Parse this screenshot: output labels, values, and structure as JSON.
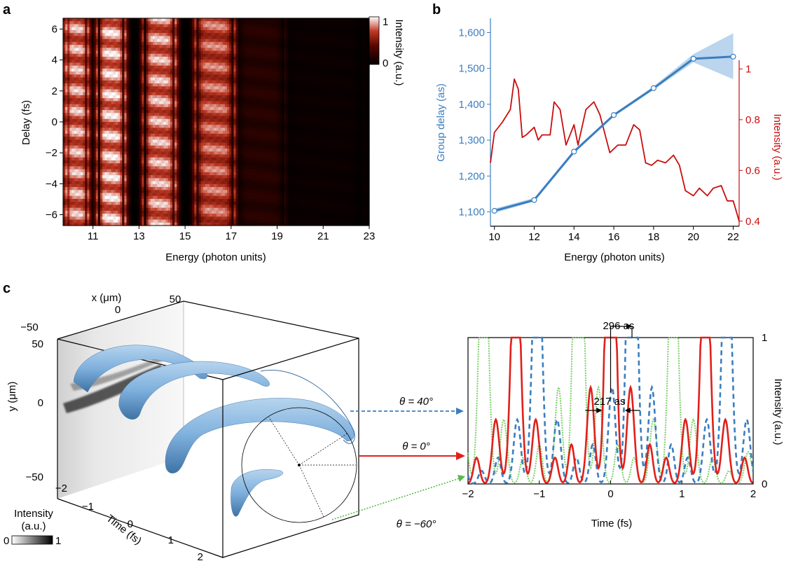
{
  "panels": {
    "a": "a",
    "b": "b",
    "c": "c"
  },
  "colors": {
    "blue": "#3a7ebf",
    "blue_light": "#a9cbe8",
    "red": "#c90d0d",
    "red_dashed_c": "#e0201b",
    "green": "#7ccf6a",
    "dark": "#000000"
  },
  "panel_a": {
    "xlabel": "Energy (photon units)",
    "ylabel": "Delay (fs)",
    "colorbar_label": "Intensity (a.u.)",
    "colorbar_ticks": [
      "1",
      "0"
    ]
  },
  "panel_b": {
    "xlabel": "Energy (photon units)",
    "ylabel_left": "Group delay (as)",
    "ylabel_right": "Intensity (a.u.)"
  },
  "panel_c": {
    "x_axis_label": "x (μm)",
    "y_axis_label": "y (μm)",
    "time_axis_label": "Time (fs)",
    "x_ticks": [
      "−50",
      "0",
      "50"
    ],
    "y_ticks": [
      "50",
      "0",
      "−50"
    ],
    "t_ticks": [
      "−2",
      "−1",
      "0",
      "1",
      "2"
    ],
    "intensity_legend_label_1": "Intensity",
    "intensity_legend_label_2": "(a.u.)",
    "intensity_legend_ticks": [
      "0",
      "1"
    ],
    "theta_labels": [
      "θ = 40°",
      "θ = 0°",
      "θ = −60°"
    ],
    "annot_296": "296 as",
    "annot_217": "217 as",
    "plot_xlabel": "Time (fs)",
    "plot_ylabel": "Intensity (a.u.)"
  },
  "chart_data": [
    {
      "type": "heatmap",
      "panel": "a",
      "xlabel": "Energy (photon units)",
      "ylabel": "Delay (fs)",
      "x_ticks": [
        11,
        13,
        15,
        17,
        19,
        21,
        23
      ],
      "y_ticks": [
        6,
        4,
        2,
        0,
        -2,
        -4,
        -6
      ],
      "xlim": [
        9.7,
        23
      ],
      "ylim": [
        -6.7,
        6.7
      ],
      "colorbar": {
        "label": "Intensity (a.u.)",
        "range": [
          0,
          1
        ]
      },
      "bands": [
        {
          "center": 10.3,
          "width": 0.9,
          "intensity": 0.95
        },
        {
          "center": 11.8,
          "width": 1.1,
          "intensity": 1.0
        },
        {
          "center": 13.9,
          "width": 1.3,
          "intensity": 0.95
        },
        {
          "center": 16.3,
          "width": 1.6,
          "intensity": 0.85
        },
        {
          "center": 18.3,
          "width": 2.0,
          "intensity": 0.2
        },
        {
          "center": 21.0,
          "width": 3.5,
          "intensity": 0.06
        }
      ]
    },
    {
      "type": "line",
      "panel": "b",
      "xlabel": "Energy (photon units)",
      "ylabel": "Group delay (as)",
      "ylabel_right": "Intensity (a.u.)",
      "x_ticks": [
        10,
        12,
        14,
        16,
        18,
        20,
        22
      ],
      "y_ticks": [
        1100,
        1200,
        1300,
        1400,
        1500,
        1600
      ],
      "y_tick_labels": [
        "1,100",
        "1,200",
        "1,300",
        "1,400",
        "1,500",
        "1,600"
      ],
      "y2_ticks": [
        0.4,
        0.6,
        0.8,
        1.0
      ],
      "y2_tick_labels": [
        "0.4",
        "0.6",
        "0.8",
        "1"
      ],
      "xlim": [
        9.8,
        22.3
      ],
      "ylim": [
        1060,
        1640
      ],
      "y2lim": [
        0.38,
        1.2
      ],
      "series": [
        {
          "axis": "left",
          "x": [
            10,
            12,
            14,
            16,
            18,
            20,
            22
          ],
          "y": [
            1103,
            1133,
            1268,
            1370,
            1445,
            1527,
            1533
          ],
          "lower": [
            1097,
            1129,
            1263,
            1366,
            1440,
            1517,
            1470
          ],
          "upper": [
            1109,
            1139,
            1273,
            1374,
            1450,
            1540,
            1598
          ]
        },
        {
          "axis": "right",
          "x": [
            9.8,
            10.0,
            10.4,
            10.8,
            11.0,
            11.2,
            11.4,
            11.6,
            12.0,
            12.2,
            12.4,
            12.8,
            13.0,
            13.3,
            13.6,
            14.0,
            14.2,
            14.6,
            15.0,
            15.3,
            15.6,
            15.8,
            16.2,
            16.6,
            17.0,
            17.3,
            17.6,
            17.9,
            18.2,
            18.6,
            19.0,
            19.3,
            19.6,
            20.0,
            20.3,
            20.7,
            21.0,
            21.4,
            21.7,
            22.0,
            22.3
          ],
          "y": [
            0.63,
            0.75,
            0.79,
            0.84,
            0.96,
            0.92,
            0.73,
            0.74,
            0.77,
            0.72,
            0.74,
            0.74,
            0.87,
            0.84,
            0.7,
            0.78,
            0.7,
            0.84,
            0.87,
            0.82,
            0.73,
            0.67,
            0.7,
            0.7,
            0.78,
            0.76,
            0.63,
            0.62,
            0.64,
            0.63,
            0.66,
            0.62,
            0.52,
            0.5,
            0.53,
            0.5,
            0.53,
            0.54,
            0.48,
            0.48,
            0.4
          ]
        }
      ]
    },
    {
      "type": "line",
      "panel": "c",
      "xlabel": "Time (fs)",
      "ylabel": "Intensity (a.u.)",
      "x_ticks": [
        -2,
        -1,
        0,
        1,
        2
      ],
      "y_ticks": [
        0,
        1
      ],
      "xlim": [
        -2,
        2
      ],
      "ylim": [
        0,
        1
      ],
      "period_fs": 1.33,
      "series": [
        {
          "label": "θ = 0°",
          "peaks": [
            -1.33,
            0.0,
            1.33
          ],
          "style": "solid",
          "peak_height": 0.93
        },
        {
          "label": "θ = 40°",
          "peaks": [
            -1.03,
            0.3,
            1.63
          ],
          "style": "dashed",
          "peak_height": 1.0
        },
        {
          "label": "θ = −60°",
          "peaks": [
            -1.78,
            -0.45,
            0.88
          ],
          "style": "dotted",
          "peak_height": 0.98
        }
      ]
    }
  ]
}
